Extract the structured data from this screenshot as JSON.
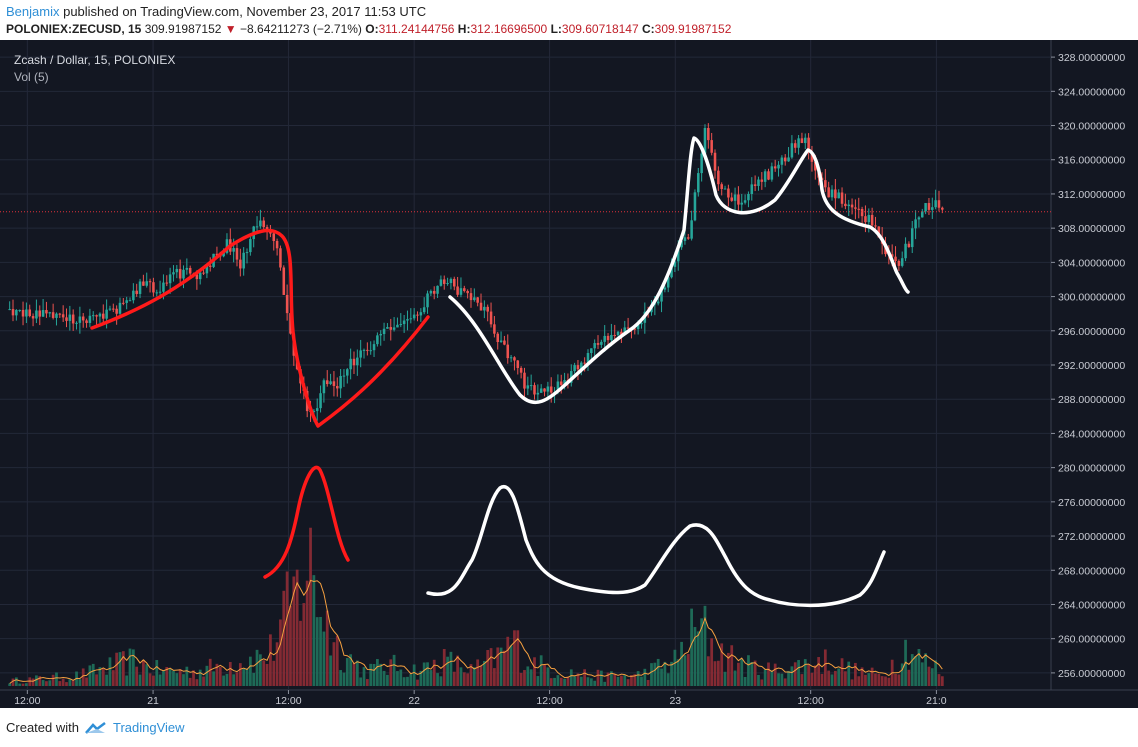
{
  "header": {
    "author": "Benjamix",
    "published_text": "published on TradingView.com, November 23, 2017 11:53 UTC",
    "symbol": "POLONIEX:ZECUSD, 15",
    "last": "309.91987152",
    "change_arrow": "▼",
    "change": "−8.64211273 (−2.71%)",
    "o_label": "O:",
    "o_value": "311.24144756",
    "h_label": "H:",
    "h_value": "312.16696500",
    "l_label": "L:",
    "l_value": "309.60718147",
    "c_label": "C:",
    "c_value": "309.91987152"
  },
  "legend": {
    "instrument": "Zcash / Dollar, 15, POLONIEX",
    "indicator": "Vol (5)"
  },
  "footer": {
    "created_with": "Created with",
    "brand": "TradingView"
  },
  "colors": {
    "background": "#131722",
    "grid": "#232838",
    "up": "#26a69a",
    "down": "#ef5350",
    "vol_up": "#1f6f5b",
    "vol_down": "#8a2b35",
    "ma": "#f5a040",
    "price_line": "#e0303a",
    "drawing_red": "#ff1a1a",
    "drawing_white": "#ffffff"
  },
  "chart_data": {
    "type": "candlestick",
    "title": "Zcash / Dollar, 15, POLONIEX",
    "current_price": 309.91987152,
    "ylim": [
      254,
      330
    ],
    "y_ticks": [
      "328.00000000",
      "324.00000000",
      "320.00000000",
      "316.00000000",
      "312.00000000",
      "308.00000000",
      "304.00000000",
      "300.00000000",
      "296.00000000",
      "292.00000000",
      "288.00000000",
      "284.00000000",
      "280.00000000",
      "276.00000000",
      "272.00000000",
      "268.00000000",
      "264.00000000",
      "260.00000000",
      "256.00000000"
    ],
    "x_ticks": [
      "12:00",
      "21",
      "12:00",
      "22",
      "12:00",
      "23",
      "12:00",
      "21:0"
    ],
    "grid": true,
    "price_path": [
      [
        0,
        298.5
      ],
      [
        4,
        298.0
      ],
      [
        8,
        297.2
      ],
      [
        12,
        297.6
      ],
      [
        16,
        298.6
      ],
      [
        18,
        300.2
      ],
      [
        20,
        301.8
      ],
      [
        22,
        300.6
      ],
      [
        24,
        302.4
      ],
      [
        26,
        303.0
      ],
      [
        28,
        302.6
      ],
      [
        30,
        304.6
      ],
      [
        32,
        306.2
      ],
      [
        34,
        303.6
      ],
      [
        36,
        308.4
      ],
      [
        37,
        309.2
      ],
      [
        38,
        307.6
      ],
      [
        39,
        306.2
      ],
      [
        40,
        302.0
      ],
      [
        41,
        296.4
      ],
      [
        42,
        292.0
      ],
      [
        43,
        289.0
      ],
      [
        44,
        286.0
      ],
      [
        45,
        286.8
      ],
      [
        46,
        290.2
      ],
      [
        48,
        289.8
      ],
      [
        50,
        292.2
      ],
      [
        52,
        293.4
      ],
      [
        54,
        295.2
      ],
      [
        56,
        296.0
      ],
      [
        58,
        297.2
      ],
      [
        60,
        298.2
      ],
      [
        62,
        300.8
      ],
      [
        64,
        302.0
      ],
      [
        66,
        300.6
      ],
      [
        68,
        299.8
      ],
      [
        70,
        298.2
      ],
      [
        72,
        294.8
      ],
      [
        74,
        292.2
      ],
      [
        76,
        289.4
      ],
      [
        78,
        288.8
      ],
      [
        80,
        289.2
      ],
      [
        82,
        290.6
      ],
      [
        84,
        292.2
      ],
      [
        86,
        294.2
      ],
      [
        88,
        295.6
      ],
      [
        90,
        296.2
      ],
      [
        92,
        296.4
      ],
      [
        94,
        298.6
      ],
      [
        96,
        301.0
      ],
      [
        98,
        305.2
      ],
      [
        100,
        307.8
      ],
      [
        101,
        313.4
      ],
      [
        102,
        319.6
      ],
      [
        104,
        313.4
      ],
      [
        106,
        311.2
      ],
      [
        108,
        311.6
      ],
      [
        110,
        313.6
      ],
      [
        112,
        314.6
      ],
      [
        114,
        316.2
      ],
      [
        116,
        318.8
      ],
      [
        117,
        318.2
      ],
      [
        118,
        314.6
      ],
      [
        120,
        312.2
      ],
      [
        122,
        311.4
      ],
      [
        124,
        310.4
      ],
      [
        126,
        309.2
      ],
      [
        128,
        306.6
      ],
      [
        130,
        303.4
      ],
      [
        132,
        306.2
      ],
      [
        134,
        310.6
      ],
      [
        136,
        310.6
      ],
      [
        137,
        310.2
      ]
    ],
    "volume_path": [
      [
        0,
        1
      ],
      [
        10,
        2
      ],
      [
        18,
        5
      ],
      [
        22,
        3
      ],
      [
        28,
        3
      ],
      [
        34,
        5
      ],
      [
        38,
        6
      ],
      [
        42,
        18
      ],
      [
        44,
        24
      ],
      [
        46,
        15
      ],
      [
        48,
        8
      ],
      [
        52,
        3
      ],
      [
        56,
        4
      ],
      [
        60,
        3
      ],
      [
        64,
        5
      ],
      [
        68,
        3
      ],
      [
        72,
        6
      ],
      [
        74,
        9
      ],
      [
        76,
        5
      ],
      [
        80,
        3
      ],
      [
        86,
        2
      ],
      [
        92,
        2
      ],
      [
        98,
        5
      ],
      [
        100,
        10
      ],
      [
        102,
        11
      ],
      [
        104,
        7
      ],
      [
        108,
        4
      ],
      [
        112,
        3
      ],
      [
        116,
        4
      ],
      [
        120,
        5
      ],
      [
        124,
        3
      ],
      [
        128,
        2
      ],
      [
        132,
        8
      ],
      [
        134,
        5
      ],
      [
        137,
        3
      ]
    ],
    "x_tick_positions": [
      2,
      15,
      29,
      42,
      56,
      69,
      83,
      96
    ],
    "drawings": [
      {
        "type": "freehand",
        "color": "red"
      },
      {
        "type": "freehand",
        "color": "red"
      },
      {
        "type": "freehand",
        "color": "red"
      },
      {
        "type": "freehand",
        "color": "white"
      },
      {
        "type": "freehand",
        "color": "white"
      }
    ]
  }
}
